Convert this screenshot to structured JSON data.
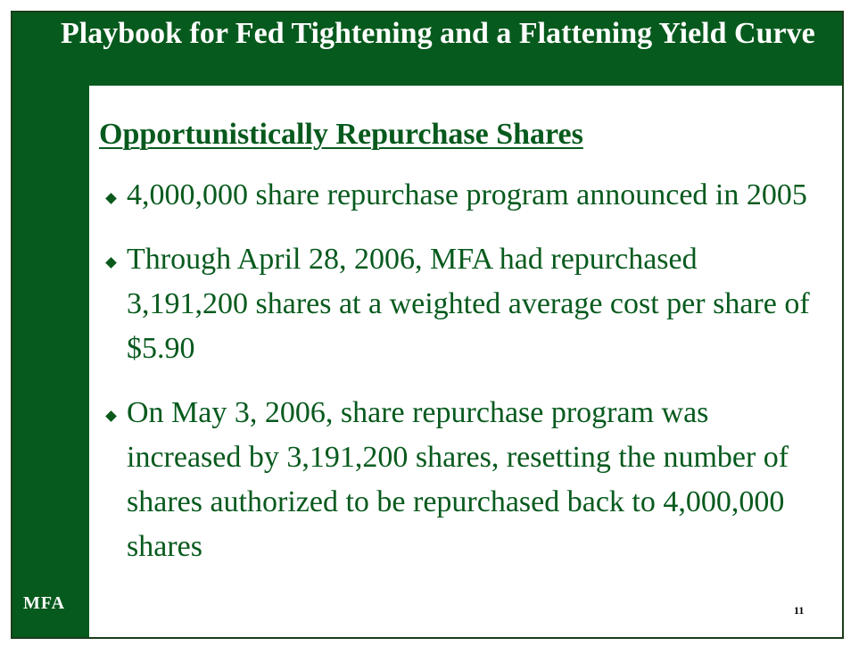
{
  "slide": {
    "title": "Playbook for Fed Tightening and a Flattening Yield Curve",
    "subtitle": "Opportunistically Repurchase Shares",
    "bullets": [
      {
        "icon": "diamond-bullet",
        "text": "4,000,000 share repurchase program announced in 2005"
      },
      {
        "icon": "diamond-bullet",
        "text": "Through April 28, 2006, MFA had repurchased 3,191,200 shares at a weighted average cost per share of $5.90"
      },
      {
        "icon": "diamond-bullet",
        "text": "On May 3, 2006, share repurchase program was increased by 3,191,200 shares, resetting the number of shares authorized to be repurchased back to 4,000,000 shares"
      }
    ],
    "logo": "MFA",
    "page_number": "11"
  },
  "colors": {
    "brand_green": "#075a1d",
    "text_green": "#075a1d",
    "title_text": "#ffffff"
  }
}
